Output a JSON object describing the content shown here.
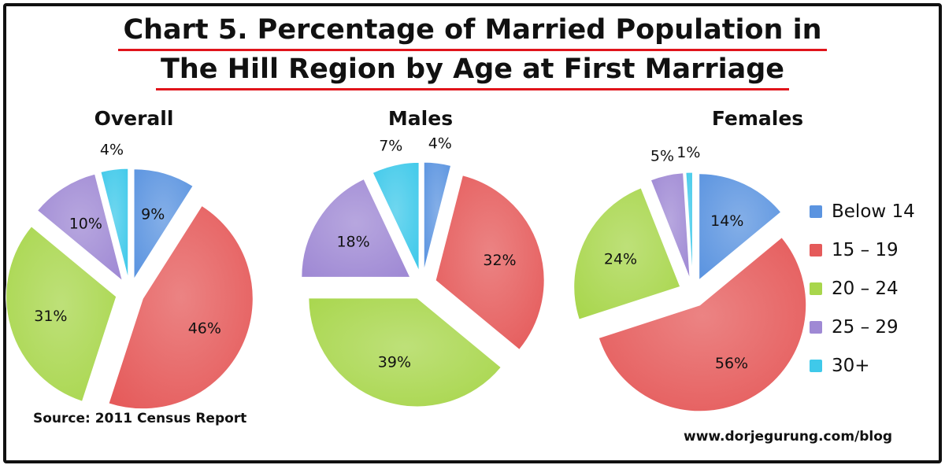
{
  "title": {
    "line1": "Chart 5. Percentage of Married Population in",
    "line2": "The Hill Region by Age at First Marriage"
  },
  "source": "Source: 2011 Census Report",
  "website": "www.dorjegurung.com/blog",
  "colors": {
    "Below 14": "#5b94e0",
    "15 – 19": "#e55a5a",
    "20 – 24": "#a8d64c",
    "25 – 29": "#9f89d4",
    "30+": "#3fc9ea"
  },
  "chart_data": [
    {
      "type": "pie",
      "title": "Overall",
      "categories": [
        "Below 14",
        "15 – 19",
        "20 – 24",
        "25 – 29",
        "30+"
      ],
      "values": [
        9,
        46,
        31,
        10,
        4
      ],
      "labels": [
        "9%",
        "46%",
        "31%",
        "10%",
        "4%"
      ],
      "exploded": true,
      "legend": "right"
    },
    {
      "type": "pie",
      "title": "Males",
      "categories": [
        "Below 14",
        "15 – 19",
        "20 – 24",
        "25 – 29",
        "30+"
      ],
      "values": [
        4,
        32,
        39,
        18,
        7
      ],
      "labels": [
        "4%",
        "32%",
        "39%",
        "18%",
        "7%"
      ],
      "exploded": true,
      "legend": "right"
    },
    {
      "type": "pie",
      "title": "Females",
      "categories": [
        "Below 14",
        "15 – 19",
        "20 – 24",
        "25 – 29",
        "30+"
      ],
      "values": [
        14,
        56,
        24,
        5,
        1
      ],
      "labels": [
        "14%",
        "56%",
        "24%",
        "5%",
        "1%"
      ],
      "exploded": true,
      "legend": "right"
    }
  ],
  "legend": {
    "items": [
      "Below 14",
      "15 – 19",
      "20 – 24",
      "25 – 29",
      "30+"
    ]
  }
}
